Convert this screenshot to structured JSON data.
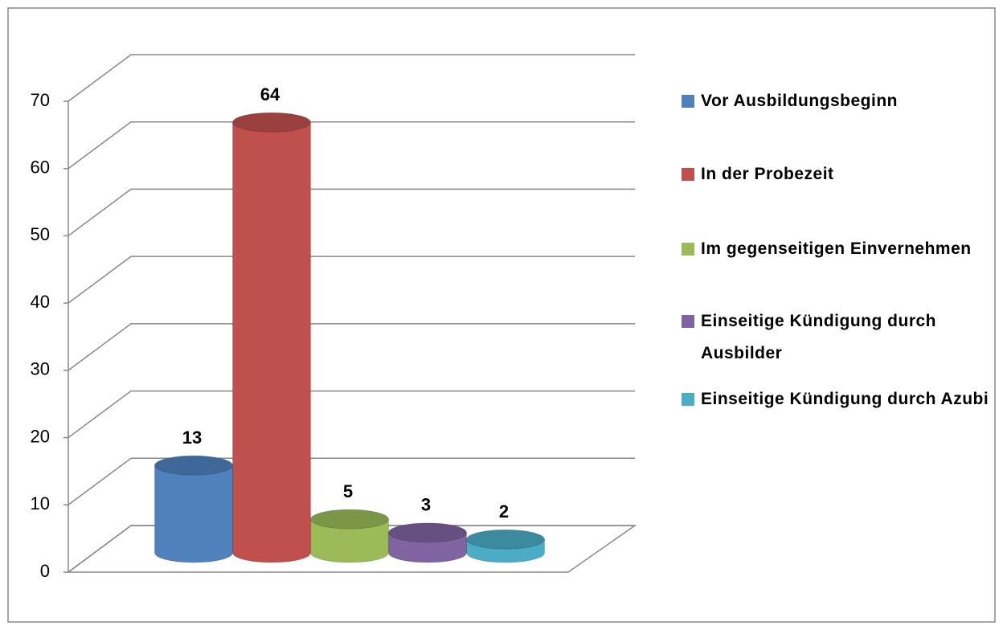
{
  "chart_data": {
    "type": "bar",
    "series": [
      {
        "name": "Vor Ausbildungsbeginn",
        "color": "#4f81bd",
        "values": [
          13
        ]
      },
      {
        "name": "In der Probezeit",
        "color": "#c0504d",
        "values": [
          64
        ]
      },
      {
        "name": "Im gegenseitigen Einvernehmen",
        "color": "#9bbb59",
        "values": [
          5
        ]
      },
      {
        "name": "Einseitige Kündigung durch Ausbilder",
        "color": "#8064a2",
        "values": [
          3
        ]
      },
      {
        "name": "Einseitige Kündigung durch Azubi",
        "color": "#4bacc6",
        "values": [
          2
        ]
      }
    ],
    "ylim": [
      0,
      70
    ],
    "yticks": [
      0,
      10,
      20,
      30,
      40,
      50,
      60,
      70
    ],
    "grid": true,
    "legend": "right"
  }
}
